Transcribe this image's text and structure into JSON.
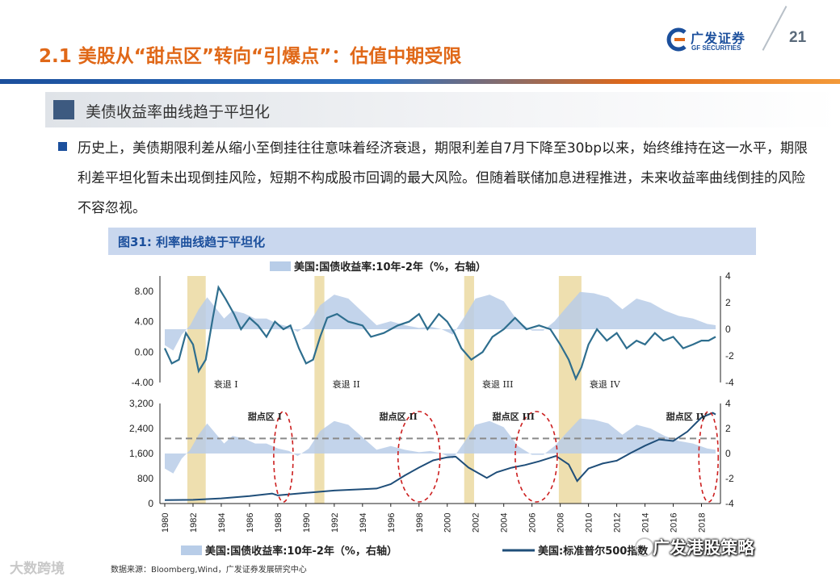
{
  "header": {
    "title": "2.1 美股从“甜点区”转向“引爆点”：估值中期受限",
    "page_number": "21",
    "logo_cn": "广发证券",
    "logo_en": "GF SECURITIES"
  },
  "section": {
    "title": "美债收益率曲线趋于平坦化"
  },
  "body": {
    "paragraph": "历史上，美债期限利差从缩小至倒挂往往意味着经济衰退，期限利差自7月下降至30bp以来，始终维持在这一水平，期限利差平坦化暂未出现倒挂风险，短期不构成股市回调的最大风险。但随着联储加息进程推进，未来收益率曲线倒挂的风险不容忽视。"
  },
  "figure": {
    "title": "图31:  利率曲线趋于平坦化",
    "source": "数据来源：Bloomberg,Wind，广发证券发展研究中心"
  },
  "watermarks": {
    "left": "大数跨境",
    "right": "广发港股策略"
  },
  "colors": {
    "accent_orange": "#e06818",
    "brand_blue": "#1b4f9c",
    "series_line": "#2e6e8e",
    "series_area": "#b8cde8",
    "recession_band": "#ecdca6",
    "sweet_ellipse": "#cc1f1f"
  },
  "chart_data": [
    {
      "type": "line",
      "legend_top": "美国:国债收益率:10年-2年（%，右轴）",
      "x_range": [
        1980,
        2019
      ],
      "y_left_range": [
        -4,
        10
      ],
      "y_left_ticks": [
        "8.00",
        "4.00",
        "0.00",
        "-4.00"
      ],
      "y_right_ticks": [
        "4",
        "2",
        "0",
        "-2",
        "-4"
      ],
      "series": [
        {
          "kind": "line",
          "points": [
            [
              1980.0,
              0.5
            ],
            [
              1980.5,
              -1.5
            ],
            [
              1981.0,
              -1.0
            ],
            [
              1981.5,
              2.5
            ],
            [
              1982.0,
              1.0
            ],
            [
              1982.4,
              -2.5
            ],
            [
              1982.9,
              -1.0
            ],
            [
              1983.4,
              4.5
            ],
            [
              1983.8,
              8.5
            ],
            [
              1984.3,
              7.0
            ],
            [
              1984.9,
              5.0
            ],
            [
              1985.4,
              3.0
            ],
            [
              1986.0,
              4.5
            ],
            [
              1986.6,
              3.5
            ],
            [
              1987.2,
              2.0
            ],
            [
              1987.8,
              4.0
            ],
            [
              1988.4,
              3.0
            ],
            [
              1988.9,
              3.5
            ],
            [
              1989.5,
              0.5
            ],
            [
              1990.0,
              -1.5
            ],
            [
              1990.5,
              -1.0
            ],
            [
              1991.0,
              2.0
            ],
            [
              1991.5,
              4.5
            ],
            [
              1992.2,
              5.0
            ],
            [
              1993.0,
              4.0
            ],
            [
              1994.0,
              3.5
            ],
            [
              1994.6,
              2.0
            ],
            [
              1995.5,
              2.5
            ],
            [
              1996.5,
              3.5
            ],
            [
              1997.3,
              4.0
            ],
            [
              1998.0,
              5.0
            ],
            [
              1998.6,
              3.0
            ],
            [
              1999.4,
              5.0
            ],
            [
              2000.0,
              4.0
            ],
            [
              2000.5,
              2.5
            ],
            [
              2001.0,
              0.5
            ],
            [
              2001.7,
              -1.0
            ],
            [
              2002.5,
              0.0
            ],
            [
              2003.2,
              2.0
            ],
            [
              2004.0,
              3.0
            ],
            [
              2004.8,
              4.5
            ],
            [
              2005.6,
              3.0
            ],
            [
              2006.5,
              3.5
            ],
            [
              2007.3,
              3.0
            ],
            [
              2008.0,
              1.0
            ],
            [
              2008.6,
              -1.0
            ],
            [
              2009.1,
              -3.5
            ],
            [
              2009.5,
              -2.0
            ],
            [
              2010.0,
              1.0
            ],
            [
              2010.6,
              3.0
            ],
            [
              2011.3,
              1.5
            ],
            [
              2012.0,
              2.5
            ],
            [
              2012.7,
              0.5
            ],
            [
              2013.4,
              1.5
            ],
            [
              2014.0,
              1.0
            ],
            [
              2014.7,
              2.5
            ],
            [
              2015.3,
              1.5
            ],
            [
              2016.0,
              2.0
            ],
            [
              2016.7,
              0.5
            ],
            [
              2017.4,
              1.0
            ],
            [
              2018.0,
              1.5
            ],
            [
              2018.5,
              1.5
            ],
            [
              2019.0,
              2.0
            ]
          ]
        },
        {
          "kind": "area",
          "axis": "right",
          "points": [
            [
              1980.0,
              -1.2
            ],
            [
              1980.6,
              -1.6
            ],
            [
              1981.2,
              -0.4
            ],
            [
              1981.8,
              0.3
            ],
            [
              1982.4,
              1.5
            ],
            [
              1983.0,
              2.4
            ],
            [
              1983.6,
              1.6
            ],
            [
              1984.2,
              0.8
            ],
            [
              1984.8,
              1.4
            ],
            [
              1985.6,
              1.2
            ],
            [
              1986.4,
              0.8
            ],
            [
              1987.2,
              0.8
            ],
            [
              1988.0,
              0.4
            ],
            [
              1988.8,
              0.2
            ],
            [
              1989.4,
              -0.2
            ],
            [
              1990.2,
              0.4
            ],
            [
              1991.0,
              1.8
            ],
            [
              1992.0,
              2.6
            ],
            [
              1993.0,
              2.3
            ],
            [
              1994.0,
              1.3
            ],
            [
              1995.0,
              0.3
            ],
            [
              1996.0,
              0.6
            ],
            [
              1997.0,
              0.3
            ],
            [
              1998.0,
              0.1
            ],
            [
              1998.8,
              0.2
            ],
            [
              1999.6,
              0.0
            ],
            [
              2000.4,
              -0.4
            ],
            [
              2001.2,
              0.9
            ],
            [
              2002.0,
              2.3
            ],
            [
              2003.0,
              2.6
            ],
            [
              2004.0,
              2.1
            ],
            [
              2005.0,
              0.6
            ],
            [
              2006.0,
              -0.1
            ],
            [
              2006.8,
              -0.1
            ],
            [
              2007.6,
              0.6
            ],
            [
              2008.4,
              1.6
            ],
            [
              2009.4,
              2.8
            ],
            [
              2010.4,
              2.7
            ],
            [
              2011.4,
              2.4
            ],
            [
              2012.4,
              1.5
            ],
            [
              2013.4,
              2.3
            ],
            [
              2014.4,
              2.0
            ],
            [
              2015.4,
              1.4
            ],
            [
              2016.4,
              1.0
            ],
            [
              2017.4,
              0.8
            ],
            [
              2018.4,
              0.4
            ],
            [
              2019.0,
              0.3
            ]
          ]
        }
      ],
      "recessions": [
        {
          "label": "衰退 I",
          "start": 1981.6,
          "end": 1982.9
        },
        {
          "label": "衰退 II",
          "start": 1990.6,
          "end": 1991.3
        },
        {
          "label": "衰退 III",
          "start": 2001.2,
          "end": 2001.9
        },
        {
          "label": "衰退 IV",
          "start": 2007.9,
          "end": 2009.5
        }
      ]
    },
    {
      "type": "line",
      "x_range": [
        1980,
        2019
      ],
      "x_ticks": [
        "1980",
        "1982",
        "1984",
        "1986",
        "1988",
        "1990",
        "1992",
        "1994",
        "1996",
        "1998",
        "2000",
        "2002",
        "2004",
        "2006",
        "2008",
        "2010",
        "2012",
        "2014",
        "2016",
        "2018"
      ],
      "y_left_range": [
        0,
        3200
      ],
      "y_left_ticks": [
        "3,200",
        "2,400",
        "1,600",
        "800",
        "0"
      ],
      "y_right_ticks": [
        "4",
        "2",
        "0",
        "-2",
        "-4"
      ],
      "legend": [
        {
          "label": "美国:国债收益率:10年-2年（%，右轴）",
          "kind": "area"
        },
        {
          "label": "美国:标准普尔500指数",
          "kind": "line"
        }
      ],
      "reference_line_right_value": 1.2,
      "series": [
        {
          "kind": "line",
          "name": "美国:标准普尔500指数",
          "points": [
            [
              1980.0,
              110
            ],
            [
              1982.0,
              120
            ],
            [
              1984.0,
              165
            ],
            [
              1986.0,
              240
            ],
            [
              1987.6,
              320
            ],
            [
              1988.0,
              260
            ],
            [
              1990.0,
              340
            ],
            [
              1992.0,
              415
            ],
            [
              1994.0,
              460
            ],
            [
              1995.0,
              480
            ],
            [
              1996.0,
              620
            ],
            [
              1997.0,
              900
            ],
            [
              1998.0,
              1150
            ],
            [
              1999.0,
              1380
            ],
            [
              2000.0,
              1480
            ],
            [
              2000.6,
              1500
            ],
            [
              2001.5,
              1150
            ],
            [
              2002.8,
              820
            ],
            [
              2003.5,
              1000
            ],
            [
              2004.5,
              1140
            ],
            [
              2005.5,
              1230
            ],
            [
              2006.5,
              1350
            ],
            [
              2007.7,
              1520
            ],
            [
              2008.6,
              1250
            ],
            [
              2009.2,
              720
            ],
            [
              2010.0,
              1120
            ],
            [
              2011.0,
              1280
            ],
            [
              2012.0,
              1370
            ],
            [
              2013.0,
              1620
            ],
            [
              2014.0,
              1850
            ],
            [
              2015.0,
              2050
            ],
            [
              2016.0,
              2000
            ],
            [
              2017.0,
              2300
            ],
            [
              2018.0,
              2750
            ],
            [
              2018.8,
              2900
            ],
            [
              2019.0,
              2850
            ]
          ]
        },
        {
          "kind": "area",
          "axis": "right",
          "points": [
            [
              1980.0,
              -1.2
            ],
            [
              1980.6,
              -1.6
            ],
            [
              1981.2,
              -0.4
            ],
            [
              1981.8,
              0.3
            ],
            [
              1982.4,
              1.5
            ],
            [
              1983.0,
              2.4
            ],
            [
              1983.6,
              1.6
            ],
            [
              1984.2,
              0.8
            ],
            [
              1984.8,
              1.4
            ],
            [
              1985.6,
              1.2
            ],
            [
              1986.4,
              0.8
            ],
            [
              1987.2,
              0.8
            ],
            [
              1988.0,
              0.4
            ],
            [
              1988.8,
              0.2
            ],
            [
              1989.4,
              -0.2
            ],
            [
              1990.2,
              0.4
            ],
            [
              1991.0,
              1.8
            ],
            [
              1992.0,
              2.6
            ],
            [
              1993.0,
              2.3
            ],
            [
              1994.0,
              1.3
            ],
            [
              1995.0,
              0.3
            ],
            [
              1996.0,
              0.6
            ],
            [
              1997.0,
              0.3
            ],
            [
              1998.0,
              0.1
            ],
            [
              1998.8,
              0.2
            ],
            [
              1999.6,
              0.0
            ],
            [
              2000.4,
              -0.4
            ],
            [
              2001.2,
              0.9
            ],
            [
              2002.0,
              2.3
            ],
            [
              2003.0,
              2.6
            ],
            [
              2004.0,
              2.1
            ],
            [
              2005.0,
              0.6
            ],
            [
              2006.0,
              -0.1
            ],
            [
              2006.8,
              -0.1
            ],
            [
              2007.6,
              0.6
            ],
            [
              2008.4,
              1.6
            ],
            [
              2009.4,
              2.8
            ],
            [
              2010.4,
              2.7
            ],
            [
              2011.4,
              2.4
            ],
            [
              2012.4,
              1.5
            ],
            [
              2013.4,
              2.3
            ],
            [
              2014.4,
              2.0
            ],
            [
              2015.4,
              1.4
            ],
            [
              2016.4,
              1.0
            ],
            [
              2017.4,
              0.8
            ],
            [
              2018.4,
              0.4
            ],
            [
              2019.0,
              0.3
            ]
          ]
        }
      ],
      "sweet_spots": [
        {
          "label": "甜点区 I",
          "center": 1988.4
        },
        {
          "label": "甜点区 II",
          "center": 1998.0
        },
        {
          "label": "甜点区 III",
          "center": 2006.3
        },
        {
          "label": "甜点区 IV",
          "center": 2018.5
        }
      ]
    }
  ]
}
